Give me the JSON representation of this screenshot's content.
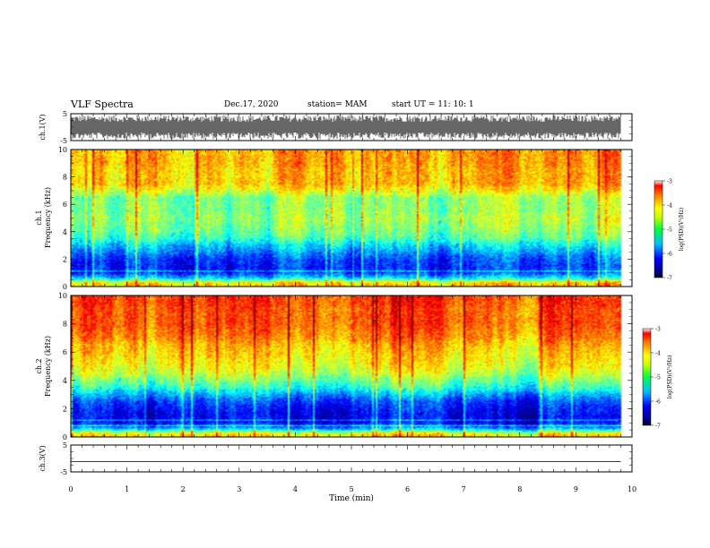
{
  "header": {
    "title": "VLF Spectra",
    "date": "Dec.17, 2020",
    "station": "station= MAM",
    "start": "start  UT =   11: 10: 1"
  },
  "chart_data": [
    {
      "type": "line",
      "name": "ch1-waveform",
      "ylabel": "ch.1(V)",
      "ylim": [
        -5,
        5
      ],
      "yticks": [
        "5",
        "-5"
      ],
      "xlim": [
        0,
        10
      ],
      "trace": {
        "envelope_min": -4.4,
        "envelope_max": 4.4,
        "t_end": 9.8
      }
    },
    {
      "type": "heatmap",
      "name": "ch1-spectrogram",
      "ylabel_top": "ch.1",
      "ylabel": "Frequency  (kHz)",
      "ylim": [
        0,
        10
      ],
      "yticks": [
        "0",
        "2",
        "4",
        "6",
        "8",
        "10"
      ],
      "xlim": [
        0,
        10
      ],
      "t_end": 9.8,
      "profile_khz": [
        0,
        0.3,
        0.6,
        1,
        1.5,
        2,
        2.5,
        3,
        3.5,
        4,
        4.5,
        5,
        5.5,
        6,
        6.5,
        7,
        7.5,
        8,
        8.5,
        9,
        9.5,
        10
      ],
      "profile_log_psd": [
        -4.3,
        -4.5,
        -5.6,
        -6.3,
        -6.4,
        -6.3,
        -6.0,
        -5.7,
        -5.3,
        -5.1,
        -5.0,
        -4.9,
        -5.0,
        -5.0,
        -5.0,
        -4.6,
        -4.3,
        -4.3,
        -4.3,
        -4.2,
        -4.2,
        -4.2
      ],
      "colorbar": {
        "label": "log(PSD)(V²/Hz)",
        "range": [
          -7,
          -3
        ],
        "ticks": [
          "-3",
          "-4",
          "-5",
          "-6",
          "-7"
        ]
      }
    },
    {
      "type": "heatmap",
      "name": "ch2-spectrogram",
      "ylabel_top": "ch.2",
      "ylabel": "Frequency  (kHz)",
      "ylim": [
        0,
        10
      ],
      "yticks": [
        "0",
        "2",
        "4",
        "6",
        "8",
        "10"
      ],
      "xlim": [
        0,
        10
      ],
      "t_end": 9.8,
      "profile_khz": [
        0,
        0.3,
        0.6,
        1,
        1.5,
        2,
        2.5,
        3,
        3.5,
        4,
        4.5,
        5,
        5.5,
        6,
        6.5,
        7,
        7.5,
        8,
        8.5,
        9,
        9.5,
        10
      ],
      "profile_log_psd": [
        -4.2,
        -4.6,
        -5.8,
        -6.4,
        -6.5,
        -6.4,
        -6.2,
        -5.8,
        -5.3,
        -5.0,
        -4.7,
        -4.5,
        -4.4,
        -4.3,
        -4.2,
        -4.0,
        -3.9,
        -3.8,
        -3.8,
        -3.8,
        -3.7,
        -3.7
      ],
      "colorbar": {
        "label": "log(PSD)(V²/Hz)",
        "range": [
          -7,
          -3
        ],
        "ticks": [
          "-3",
          "-4",
          "-5",
          "-6",
          "-7"
        ]
      }
    },
    {
      "type": "line",
      "name": "ch3-waveform",
      "ylabel": "ch.3(V)",
      "ylim": [
        -5,
        5
      ],
      "yticks": [
        "5",
        "-5"
      ],
      "xlim": [
        0,
        10
      ],
      "trace": {
        "constant": -1.2,
        "t_end": 9.8
      }
    }
  ],
  "xaxis": {
    "label": "Time  (min)",
    "ticks": [
      "0",
      "1",
      "2",
      "3",
      "4",
      "5",
      "6",
      "7",
      "8",
      "9",
      "10"
    ]
  },
  "colors": {
    "frame": "#000000",
    "trace": "#000000",
    "colormap": [
      "#00007f",
      "#0000ff",
      "#007fff",
      "#00ffff",
      "#00ff7f",
      "#7fff00",
      "#ffff00",
      "#ff7f00",
      "#ff0000",
      "#7f0000"
    ]
  }
}
